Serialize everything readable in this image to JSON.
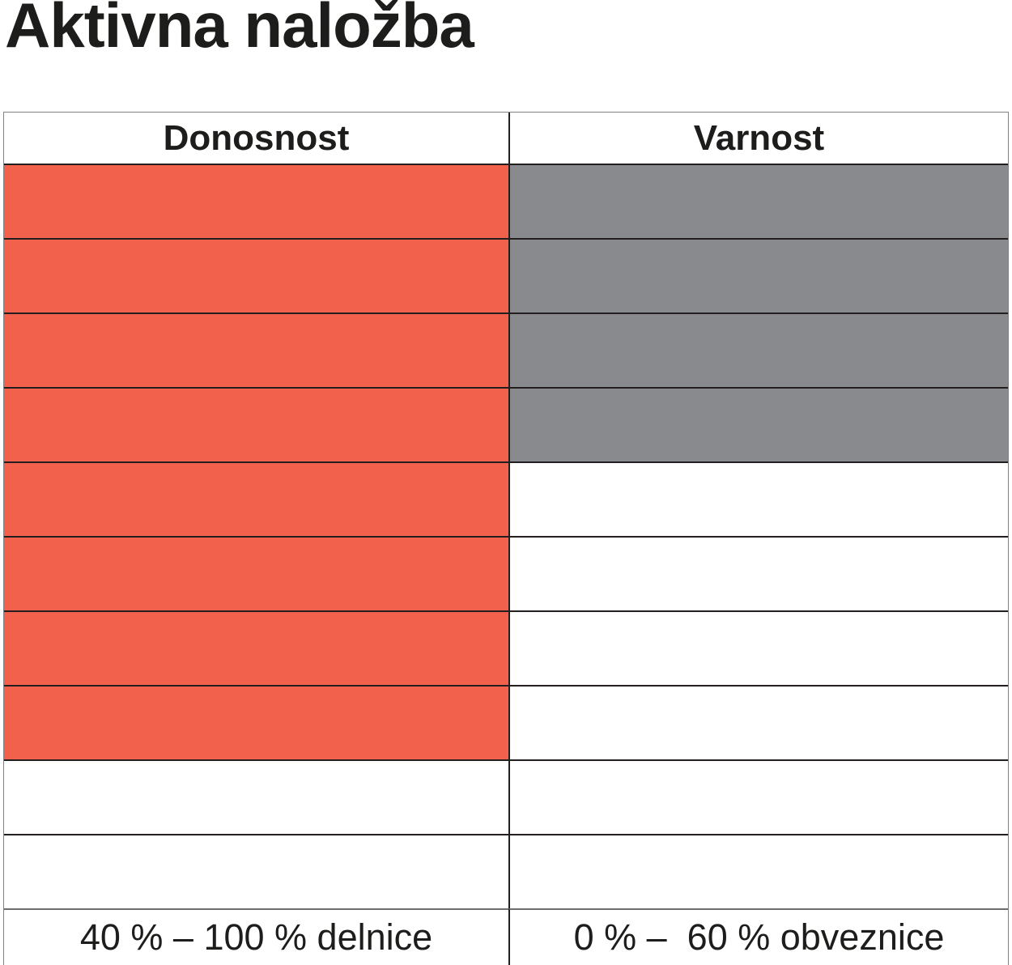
{
  "title": "Aktivna naložba",
  "colors": {
    "return_fill": "#f2614b",
    "safety_fill": "#898a8d",
    "grid_line": "#231f20",
    "footer_line": "#6d6e70",
    "outer_border": "#808285",
    "text": "#1d1d1b"
  },
  "table": {
    "rows_total": 10,
    "columns": [
      {
        "id": "donosnost",
        "header": "Donosnost",
        "filled_rows": 8,
        "fill_color": "#f2614b",
        "footer": "40 % – 100 % delnice"
      },
      {
        "id": "varnost",
        "header": "Varnost",
        "filled_rows": 4,
        "fill_color": "#898a8d",
        "footer": "0 % –  60 % obveznice"
      }
    ]
  },
  "chart_data": {
    "type": "bar",
    "title": "Aktivna naložba",
    "categories": [
      "Donosnost",
      "Varnost"
    ],
    "values": [
      8,
      4
    ],
    "scale_max": 10,
    "cells_per_column": 10,
    "fill_direction": "from_top",
    "bar_colors": [
      "#f2614b",
      "#898a8d"
    ],
    "annotations": [
      "40 % – 100 % delnice",
      "0 % –  60 % obveznice"
    ],
    "xlabel": "",
    "ylabel": "",
    "legend": "none",
    "grid": "on"
  }
}
